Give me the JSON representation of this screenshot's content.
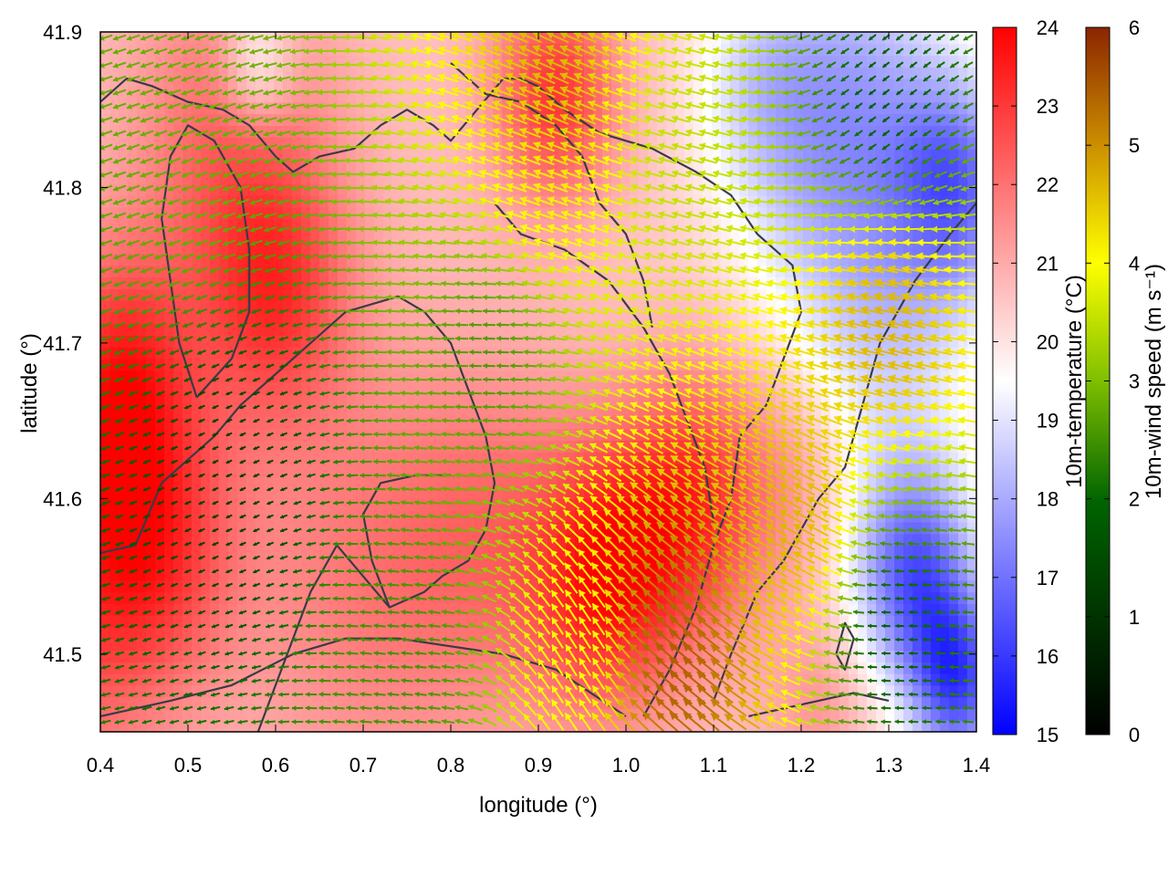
{
  "chart_data": {
    "type": "heatmap",
    "title": "",
    "xlabel": "longitude (°)",
    "ylabel": "latitude (°)",
    "xlim": [
      0.4,
      1.4
    ],
    "ylim": [
      41.45,
      41.9
    ],
    "x_ticks": [
      "0.4",
      "0.5",
      "0.6",
      "0.7",
      "0.8",
      "0.9",
      "1.0",
      "1.1",
      "1.2",
      "1.3",
      "1.4"
    ],
    "y_ticks": [
      "41.5",
      "41.6",
      "41.7",
      "41.8",
      "41.9"
    ],
    "grid": false,
    "temperature_colorbar": {
      "label": "10m-temperature (°C)",
      "range": [
        15,
        24
      ],
      "ticks": [
        "15",
        "16",
        "17",
        "18",
        "19",
        "20",
        "21",
        "22",
        "23",
        "24"
      ],
      "colors": [
        "#0000ff",
        "#ffffff",
        "#ff0000"
      ]
    },
    "wind_colorbar": {
      "label": "10m-wind speed (m s⁻¹)",
      "range": [
        0,
        6
      ],
      "ticks": [
        "0",
        "1",
        "2",
        "3",
        "4",
        "5",
        "6"
      ],
      "colors": [
        "#000000",
        "#006400",
        "#7fbf00",
        "#ffff00",
        "#cc8f00",
        "#8b2500"
      ]
    },
    "temperature_field": [
      {
        "lon": 0.45,
        "lat": 41.57,
        "temp": 23.8,
        "spread": 0.07
      },
      {
        "lon": 0.42,
        "lat": 41.68,
        "temp": 23.5,
        "spread": 0.06
      },
      {
        "lon": 0.6,
        "lat": 41.73,
        "temp": 23.0,
        "spread": 0.06
      },
      {
        "lon": 0.55,
        "lat": 41.83,
        "temp": 22.5,
        "spread": 0.08
      },
      {
        "lon": 0.98,
        "lat": 41.55,
        "temp": 24.0,
        "spread": 0.06
      },
      {
        "lon": 1.08,
        "lat": 41.6,
        "temp": 23.5,
        "spread": 0.06
      },
      {
        "lon": 0.92,
        "lat": 41.86,
        "temp": 23.5,
        "spread": 0.05
      },
      {
        "lon": 0.85,
        "lat": 41.58,
        "temp": 22.0,
        "spread": 0.08
      },
      {
        "lon": 0.7,
        "lat": 41.55,
        "temp": 22.0,
        "spread": 0.1
      },
      {
        "lon": 0.32,
        "lat": 41.5,
        "temp": 22.5,
        "spread": 0.08
      },
      {
        "lon": 1.0,
        "lat": 41.72,
        "temp": 20.5,
        "spread": 0.1
      },
      {
        "lon": 1.25,
        "lat": 41.84,
        "temp": 17.2,
        "spread": 0.09
      },
      {
        "lon": 1.33,
        "lat": 41.55,
        "temp": 16.2,
        "spread": 0.05
      },
      {
        "lon": 1.38,
        "lat": 41.48,
        "temp": 16.0,
        "spread": 0.04
      },
      {
        "lon": 1.38,
        "lat": 41.8,
        "temp": 17.0,
        "spread": 0.05
      },
      {
        "lon": 1.3,
        "lat": 41.68,
        "temp": 19.0,
        "spread": 0.08
      },
      {
        "lon": 0.58,
        "lat": 41.88,
        "temp": 18.5,
        "spread": 0.03
      },
      {
        "lon": 1.15,
        "lat": 41.87,
        "temp": 19.5,
        "spread": 0.05
      },
      {
        "lon": 1.2,
        "lat": 41.62,
        "temp": 21.5,
        "spread": 0.05
      },
      {
        "lon": 1.22,
        "lat": 41.47,
        "temp": 21.5,
        "spread": 0.04
      }
    ],
    "wind_field": {
      "prevailing_direction": "from east (arrows point west)",
      "regions": [
        {
          "lon": 0.55,
          "lat": 41.62,
          "speed": 0.7,
          "dir_deg": 205
        },
        {
          "lon": 0.5,
          "lat": 41.8,
          "speed": 2.2,
          "dir_deg": 200
        },
        {
          "lon": 0.85,
          "lat": 41.7,
          "speed": 1.8,
          "dir_deg": 180
        },
        {
          "lon": 0.9,
          "lat": 41.8,
          "speed": 3.8,
          "dir_deg": 160
        },
        {
          "lon": 0.92,
          "lat": 41.87,
          "speed": 4.5,
          "dir_deg": 155
        },
        {
          "lon": 1.05,
          "lat": 41.82,
          "speed": 3.0,
          "dir_deg": 165
        },
        {
          "lon": 1.3,
          "lat": 41.72,
          "speed": 4.5,
          "dir_deg": 165
        },
        {
          "lon": 1.2,
          "lat": 41.58,
          "speed": 4.5,
          "dir_deg": 150
        },
        {
          "lon": 1.05,
          "lat": 41.5,
          "speed": 5.5,
          "dir_deg": 140
        },
        {
          "lon": 0.95,
          "lat": 41.5,
          "speed": 3.5,
          "dir_deg": 120
        },
        {
          "lon": 1.3,
          "lat": 41.52,
          "speed": 1.0,
          "dir_deg": 180
        },
        {
          "lon": 1.3,
          "lat": 41.85,
          "speed": 1.0,
          "dir_deg": 220
        },
        {
          "lon": 0.75,
          "lat": 41.5,
          "speed": 1.8,
          "dir_deg": 175
        }
      ]
    },
    "contour_lines": [
      [
        [
          0.4,
          41.855
        ],
        [
          0.43,
          41.87
        ],
        [
          0.46,
          41.865
        ],
        [
          0.5,
          41.855
        ],
        [
          0.54,
          41.85
        ],
        [
          0.57,
          41.84
        ],
        [
          0.6,
          41.82
        ],
        [
          0.62,
          41.81
        ],
        [
          0.65,
          41.82
        ],
        [
          0.69,
          41.825
        ],
        [
          0.72,
          41.84
        ],
        [
          0.75,
          41.85
        ],
        [
          0.78,
          41.84
        ],
        [
          0.8,
          41.83
        ],
        [
          0.83,
          41.85
        ],
        [
          0.86,
          41.87
        ],
        [
          0.88,
          41.87
        ],
        [
          0.9,
          41.865
        ],
        [
          0.93,
          41.85
        ],
        [
          0.97,
          41.835
        ],
        [
          1.03,
          41.825
        ],
        [
          1.08,
          41.81
        ],
        [
          1.12,
          41.795
        ],
        [
          1.15,
          41.77
        ],
        [
          1.19,
          41.75
        ],
        [
          1.2,
          41.72
        ],
        [
          1.18,
          41.69
        ],
        [
          1.16,
          41.66
        ],
        [
          1.13,
          41.64
        ],
        [
          1.12,
          41.6
        ],
        [
          1.1,
          41.57
        ],
        [
          1.08,
          41.53
        ],
        [
          1.05,
          41.49
        ],
        [
          1.02,
          41.46
        ]
      ],
      [
        [
          0.51,
          41.665
        ],
        [
          0.55,
          41.69
        ],
        [
          0.57,
          41.72
        ],
        [
          0.57,
          41.76
        ],
        [
          0.56,
          41.8
        ],
        [
          0.53,
          41.83
        ],
        [
          0.5,
          41.84
        ],
        [
          0.48,
          41.82
        ],
        [
          0.47,
          41.78
        ],
        [
          0.48,
          41.74
        ],
        [
          0.49,
          41.7
        ],
        [
          0.51,
          41.665
        ]
      ],
      [
        [
          0.4,
          41.565
        ],
        [
          0.44,
          41.57
        ],
        [
          0.47,
          41.61
        ],
        [
          0.5,
          41.625
        ],
        [
          0.53,
          41.64
        ],
        [
          0.56,
          41.66
        ],
        [
          0.6,
          41.68
        ],
        [
          0.64,
          41.7
        ],
        [
          0.68,
          41.72
        ],
        [
          0.74,
          41.73
        ],
        [
          0.77,
          41.72
        ],
        [
          0.8,
          41.7
        ],
        [
          0.82,
          41.67
        ],
        [
          0.84,
          41.64
        ],
        [
          0.85,
          41.61
        ],
        [
          0.84,
          41.58
        ],
        [
          0.82,
          41.56
        ],
        [
          0.79,
          41.55
        ],
        [
          0.77,
          41.54
        ],
        [
          0.73,
          41.53
        ],
        [
          0.7,
          41.55
        ],
        [
          0.67,
          41.57
        ],
        [
          0.64,
          41.54
        ],
        [
          0.62,
          41.51
        ],
        [
          0.6,
          41.48
        ],
        [
          0.58,
          41.45
        ]
      ],
      [
        [
          0.73,
          41.53
        ],
        [
          0.71,
          41.56
        ],
        [
          0.7,
          41.59
        ],
        [
          0.72,
          41.61
        ],
        [
          0.76,
          41.615
        ],
        [
          0.8,
          41.615
        ]
      ],
      [
        [
          0.85,
          41.79
        ],
        [
          0.88,
          41.77
        ],
        [
          0.93,
          41.76
        ],
        [
          0.98,
          41.74
        ],
        [
          1.02,
          41.71
        ],
        [
          1.05,
          41.68
        ],
        [
          1.07,
          41.65
        ],
        [
          1.09,
          41.62
        ],
        [
          1.1,
          41.585
        ]
      ],
      [
        [
          0.8,
          41.88
        ],
        [
          0.84,
          41.86
        ],
        [
          0.88,
          41.855
        ],
        [
          0.92,
          41.84
        ],
        [
          0.95,
          41.82
        ],
        [
          0.97,
          41.79
        ],
        [
          1.0,
          41.77
        ],
        [
          1.02,
          41.74
        ],
        [
          1.03,
          41.71
        ]
      ],
      [
        [
          0.4,
          41.46
        ],
        [
          0.48,
          41.47
        ],
        [
          0.55,
          41.48
        ],
        [
          0.62,
          41.5
        ],
        [
          0.68,
          41.51
        ],
        [
          0.74,
          41.51
        ],
        [
          0.8,
          41.505
        ],
        [
          0.86,
          41.5
        ],
        [
          0.92,
          41.49
        ],
        [
          0.96,
          41.475
        ],
        [
          1.0,
          41.46
        ]
      ],
      [
        [
          1.4,
          41.79
        ],
        [
          1.37,
          41.77
        ],
        [
          1.33,
          41.74
        ],
        [
          1.29,
          41.7
        ],
        [
          1.27,
          41.66
        ],
        [
          1.25,
          41.62
        ],
        [
          1.22,
          41.6
        ],
        [
          1.2,
          41.58
        ],
        [
          1.18,
          41.56
        ],
        [
          1.15,
          41.54
        ],
        [
          1.12,
          41.5
        ],
        [
          1.1,
          41.47
        ]
      ],
      [
        [
          1.14,
          41.46
        ],
        [
          1.18,
          41.465
        ],
        [
          1.22,
          41.47
        ],
        [
          1.26,
          41.475
        ],
        [
          1.3,
          41.47
        ]
      ],
      [
        [
          1.24,
          41.5
        ],
        [
          1.25,
          41.52
        ],
        [
          1.26,
          41.51
        ],
        [
          1.25,
          41.49
        ],
        [
          1.24,
          41.5
        ]
      ]
    ]
  }
}
